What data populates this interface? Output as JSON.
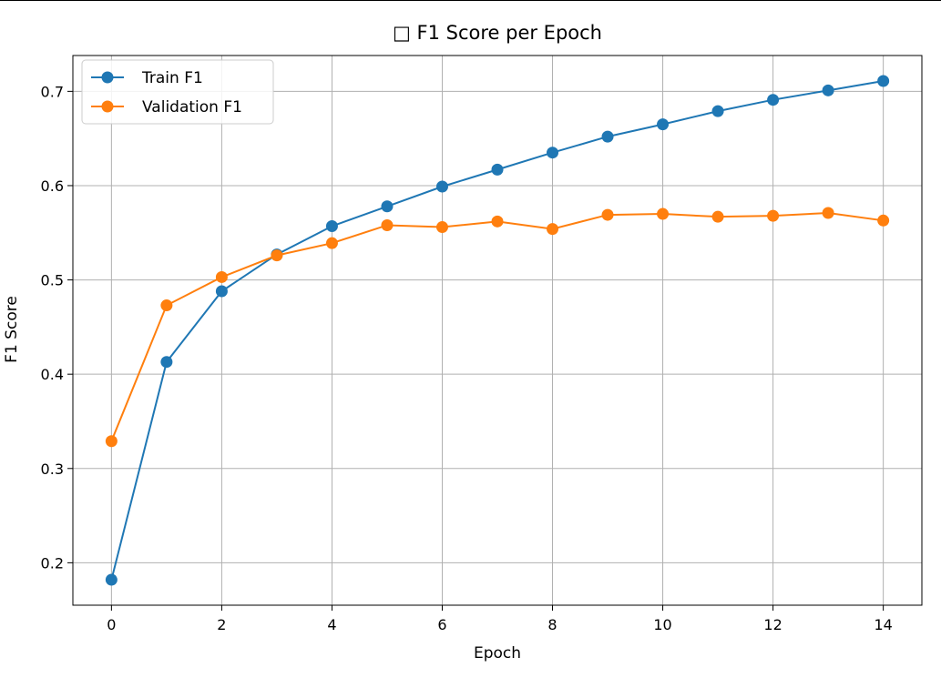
{
  "chart_data": {
    "type": "line",
    "title": "□ F1 Score per Epoch",
    "xlabel": "Epoch",
    "ylabel": "F1 Score",
    "xlim": [
      -0.7,
      14.7
    ],
    "ylim": [
      0.155,
      0.738
    ],
    "xticks": [
      0,
      2,
      4,
      6,
      8,
      10,
      12,
      14
    ],
    "yticks": [
      0.2,
      0.3,
      0.4,
      0.5,
      0.6,
      0.7
    ],
    "grid": true,
    "legend_position": "upper-left",
    "x": [
      0,
      1,
      2,
      3,
      4,
      5,
      6,
      7,
      8,
      9,
      10,
      11,
      12,
      13,
      14
    ],
    "series": [
      {
        "name": "Train F1",
        "color": "#1f77b4",
        "marker": "circle",
        "values": [
          0.182,
          0.413,
          0.488,
          0.527,
          0.557,
          0.578,
          0.599,
          0.617,
          0.635,
          0.652,
          0.665,
          0.679,
          0.691,
          0.701,
          0.711
        ]
      },
      {
        "name": "Validation F1",
        "color": "#ff7f0e",
        "marker": "circle",
        "values": [
          0.329,
          0.473,
          0.503,
          0.526,
          0.539,
          0.558,
          0.556,
          0.562,
          0.554,
          0.569,
          0.57,
          0.567,
          0.568,
          0.571,
          0.563
        ]
      }
    ]
  }
}
